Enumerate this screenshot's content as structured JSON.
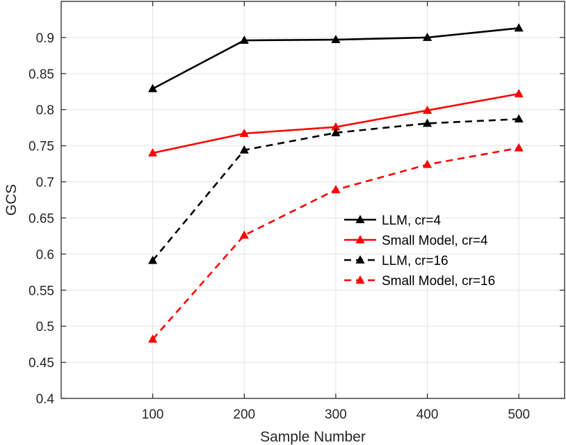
{
  "chart_data": {
    "type": "line",
    "title": "",
    "xlabel": "Sample Number",
    "ylabel": "GCS",
    "x": [
      100,
      200,
      300,
      400,
      500
    ],
    "xlim": [
      0,
      550
    ],
    "ylim": [
      0.4,
      0.95
    ],
    "xticks": [
      100,
      200,
      300,
      400,
      500
    ],
    "yticks": [
      0.4,
      0.45,
      0.5,
      0.55,
      0.6,
      0.65,
      0.7,
      0.75,
      0.8,
      0.85,
      0.9
    ],
    "xtick_labels": [
      "100",
      "200",
      "300",
      "400",
      "500"
    ],
    "ytick_labels": [
      "0.4",
      "0.45",
      "0.5",
      "0.55",
      "0.6",
      "0.65",
      "0.7",
      "0.75",
      "0.8",
      "0.85",
      "0.9"
    ],
    "grid": true,
    "legend_position": "center-right",
    "series": [
      {
        "name": "LLM, cr=4",
        "values": [
          0.829,
          0.896,
          0.897,
          0.9,
          0.913
        ],
        "color": "#000000",
        "dash": "solid",
        "marker": "triangle"
      },
      {
        "name": "Small Model, cr=4",
        "values": [
          0.74,
          0.767,
          0.776,
          0.799,
          0.822
        ],
        "color": "#ff0000",
        "dash": "solid",
        "marker": "triangle"
      },
      {
        "name": "LLM, cr=16",
        "values": [
          0.591,
          0.744,
          0.768,
          0.781,
          0.787
        ],
        "color": "#000000",
        "dash": "dashed",
        "marker": "triangle"
      },
      {
        "name": "Small Model, cr=16",
        "values": [
          0.482,
          0.626,
          0.689,
          0.724,
          0.747
        ],
        "color": "#ff0000",
        "dash": "dashed",
        "marker": "triangle"
      }
    ]
  }
}
